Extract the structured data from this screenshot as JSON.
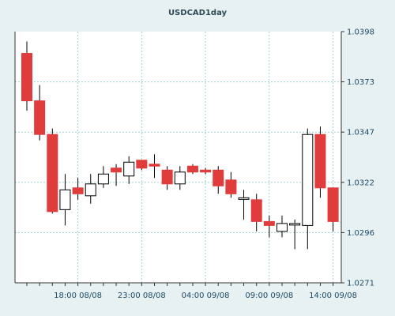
{
  "chart_data": {
    "type": "candlestick",
    "title": "USDCAD1day",
    "ylim": [
      1.0271,
      1.0398
    ],
    "y_ticks": [
      "1.0398",
      "1.0373",
      "1.0347",
      "1.0322",
      "1.0296",
      "1.0271"
    ],
    "x_ticks": [
      "18:00 08/08",
      "23:00 08/08",
      "04:00 09/08",
      "09:00 09/08",
      "14:00 09/08"
    ],
    "grid": true,
    "colors": {
      "up": "#ffffff",
      "down": "#e03c3c",
      "wick": "#000000",
      "grid": "#9fd3d3",
      "background": "#ffffff"
    },
    "candles": [
      {
        "open": 1.0387,
        "high": 1.0393,
        "low": 1.0358,
        "close": 1.0363
      },
      {
        "open": 1.0363,
        "high": 1.0371,
        "low": 1.0343,
        "close": 1.0346
      },
      {
        "open": 1.0346,
        "high": 1.0349,
        "low": 1.0306,
        "close": 1.0307
      },
      {
        "open": 1.0308,
        "high": 1.0326,
        "low": 1.03,
        "close": 1.0318
      },
      {
        "open": 1.0319,
        "high": 1.0324,
        "low": 1.0313,
        "close": 1.0316
      },
      {
        "open": 1.0315,
        "high": 1.0326,
        "low": 1.0311,
        "close": 1.0321
      },
      {
        "open": 1.0321,
        "high": 1.033,
        "low": 1.0319,
        "close": 1.0326
      },
      {
        "open": 1.0329,
        "high": 1.0331,
        "low": 1.032,
        "close": 1.0327
      },
      {
        "open": 1.0325,
        "high": 1.0335,
        "low": 1.0321,
        "close": 1.0332
      },
      {
        "open": 1.0333,
        "high": 1.0333,
        "low": 1.0328,
        "close": 1.0329
      },
      {
        "open": 1.0331,
        "high": 1.0336,
        "low": 1.0324,
        "close": 1.033
      },
      {
        "open": 1.0328,
        "high": 1.033,
        "low": 1.0318,
        "close": 1.0321
      },
      {
        "open": 1.0321,
        "high": 1.033,
        "low": 1.0318,
        "close": 1.0327
      },
      {
        "open": 1.033,
        "high": 1.0331,
        "low": 1.0326,
        "close": 1.0327
      },
      {
        "open": 1.0328,
        "high": 1.0329,
        "low": 1.0326,
        "close": 1.0327
      },
      {
        "open": 1.0328,
        "high": 1.033,
        "low": 1.0316,
        "close": 1.032
      },
      {
        "open": 1.0323,
        "high": 1.0327,
        "low": 1.0314,
        "close": 1.0316
      },
      {
        "open": 1.0314,
        "high": 1.0318,
        "low": 1.0303,
        "close": 1.0314
      },
      {
        "open": 1.0313,
        "high": 1.0316,
        "low": 1.0297,
        "close": 1.0302
      },
      {
        "open": 1.0302,
        "high": 1.0305,
        "low": 1.0294,
        "close": 1.03
      },
      {
        "open": 1.0297,
        "high": 1.0305,
        "low": 1.0294,
        "close": 1.0301
      },
      {
        "open": 1.0301,
        "high": 1.0303,
        "low": 1.0288,
        "close": 1.0301
      },
      {
        "open": 1.03,
        "high": 1.0349,
        "low": 1.0288,
        "close": 1.0346
      },
      {
        "open": 1.0346,
        "high": 1.035,
        "low": 1.0314,
        "close": 1.0319
      },
      {
        "open": 1.0319,
        "high": 1.0319,
        "low": 1.0297,
        "close": 1.0302
      }
    ]
  }
}
